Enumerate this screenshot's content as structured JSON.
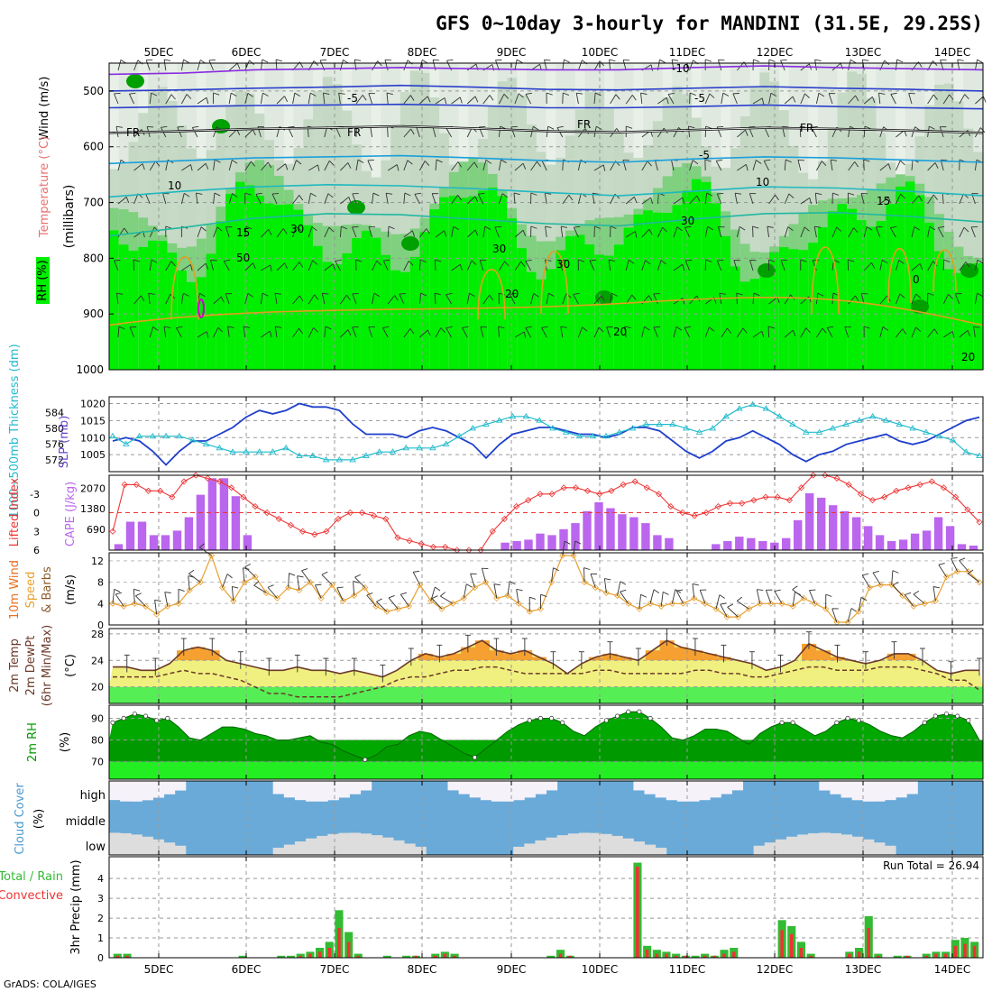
{
  "title": "GFS 0~10day 3-hourly for MANDINI (31.5E, 29.25S)",
  "footer": "GrADS: COLA/IGES",
  "colors": {
    "rh_green": "#00ee00",
    "rh_light": "#e8f0e8",
    "rh_mid": "#b8d0b8",
    "rh_dark": "#00a000",
    "slp": "#1f3fcc",
    "thickness": "#22bbcc",
    "lifted_index": "#ee3333",
    "cape": "#bb66ee",
    "wind_speed": "#e8a030",
    "temp_fill": "#f5a030",
    "dewpt_fill": "#f0f080",
    "rh2m": "#009900",
    "cloud_blue": "#6aaad8",
    "cloud_white": "#f6f2fa",
    "cloud_grey": "#dddddd",
    "precip_total": "#33bb33",
    "precip_conv": "#ee3333"
  },
  "chart_data": [
    {
      "type": "heatmap",
      "panel": "pressure-height cross section",
      "ylabel": "(millibars)",
      "left_labels": [
        "RH (%)",
        "Temperature (°C)",
        "Wind (m/s)"
      ],
      "yticks": [
        "500",
        "600",
        "700",
        "800",
        "900",
        "1000"
      ],
      "xticks": [
        "5DEC",
        "6DEC",
        "7DEC",
        "8DEC",
        "9DEC",
        "10DEC",
        "11DEC",
        "12DEC",
        "13DEC",
        "14DEC"
      ],
      "contour_labels": [
        "-10",
        "-5",
        "-5",
        "-5",
        "FR",
        "FR",
        "FR",
        "FR",
        "10",
        "10",
        "15",
        "15",
        "20",
        "20",
        "20",
        "30",
        "30",
        "30",
        "30",
        "50",
        "0"
      ],
      "isotherms": [
        {
          "label": "-10",
          "pressure": [
            470,
            468,
            462,
            460,
            458,
            460,
            462,
            462,
            458,
            455,
            458,
            460,
            462
          ]
        },
        {
          "label": "-5",
          "pressure": [
            500,
            498,
            495,
            493,
            490,
            493,
            497,
            498,
            495,
            492,
            495,
            497,
            500
          ]
        },
        {
          "label": "-5b",
          "pressure": [
            530,
            528,
            526,
            525,
            524,
            526,
            530,
            530,
            528,
            525,
            528,
            530,
            532
          ]
        },
        {
          "label": "FR",
          "pressure": [
            575,
            572,
            568,
            566,
            563,
            567,
            572,
            574,
            570,
            566,
            568,
            571,
            575
          ]
        },
        {
          "label": "5",
          "pressure": [
            630,
            625,
            620,
            618,
            616,
            620,
            625,
            628,
            622,
            618,
            620,
            624,
            628
          ]
        },
        {
          "label": "10",
          "pressure": [
            690,
            680,
            672,
            668,
            670,
            675,
            682,
            688,
            680,
            672,
            674,
            680,
            688
          ]
        },
        {
          "label": "15",
          "pressure": [
            760,
            745,
            728,
            720,
            722,
            730,
            738,
            742,
            730,
            720,
            718,
            725,
            735
          ]
        }
      ]
    },
    {
      "type": "line",
      "panel": "SLP and 1000-500mb thickness",
      "ylabel_left": "1000~500mb Thickness (dm)",
      "ylabel_right": "SLP (mb)",
      "yticks_left": [
        "584",
        "580",
        "576",
        "572"
      ],
      "yticks_right": [
        "1020",
        "1015",
        "1010",
        "1005"
      ],
      "series": [
        {
          "name": "SLP (mb)",
          "values": [
            1009,
            1010,
            1009,
            1006,
            1002,
            1006,
            1009,
            1009,
            1011,
            1013,
            1016,
            1018,
            1017,
            1018,
            1020,
            1019,
            1019,
            1018,
            1014,
            1011,
            1011,
            1011,
            1010,
            1012,
            1013,
            1012,
            1010,
            1008,
            1004,
            1008,
            1011,
            1012,
            1013,
            1013,
            1012,
            1011,
            1011,
            1010,
            1011,
            1013,
            1013,
            1012,
            1009,
            1006,
            1004,
            1006,
            1009,
            1010,
            1012,
            1010,
            1008,
            1005,
            1003,
            1005,
            1006,
            1008,
            1009,
            1010,
            1011,
            1009,
            1008,
            1009,
            1011,
            1013,
            1015,
            1016
          ]
        },
        {
          "name": "1000-500mb Thickness (dm)",
          "values": [
            578,
            576,
            578,
            578,
            578,
            578,
            577,
            576,
            575,
            574,
            574,
            574,
            574,
            575,
            573,
            573,
            572,
            572,
            572,
            573,
            574,
            574,
            575,
            575,
            575,
            576,
            578,
            580,
            581,
            582,
            583,
            583,
            582,
            580,
            579,
            578,
            578,
            578,
            579,
            580,
            581,
            581,
            581,
            580,
            579,
            580,
            583,
            585,
            586,
            585,
            583,
            581,
            579,
            579,
            580,
            581,
            582,
            583,
            582,
            581,
            580,
            579,
            578,
            577,
            574,
            573
          ]
        }
      ]
    },
    {
      "type": "bar",
      "panel": "CAPE and Lifted Index",
      "ylabel_left": "Lifted Index",
      "ylabel_right": "CAPE (J/kg)",
      "yticks_li": [
        "-3",
        "0",
        "3",
        "6"
      ],
      "yticks_cape": [
        "2070",
        "1380",
        "690"
      ],
      "series": [
        {
          "name": "CAPE (J/kg)",
          "values": [
            200,
            950,
            950,
            500,
            500,
            650,
            1100,
            1850,
            2400,
            2400,
            1800,
            500,
            0,
            0,
            0,
            0,
            0,
            0,
            0,
            0,
            0,
            0,
            0,
            0,
            0,
            0,
            0,
            0,
            0,
            0,
            0,
            0,
            0,
            250,
            300,
            350,
            550,
            500,
            700,
            900,
            1300,
            1600,
            1400,
            1200,
            1100,
            900,
            500,
            400,
            0,
            0,
            0,
            200,
            300,
            450,
            400,
            300,
            250,
            400,
            1000,
            1900,
            1750,
            1500,
            1300,
            1100,
            800,
            500,
            300,
            350,
            550,
            650,
            1100,
            800,
            200,
            150
          ]
        },
        {
          "name": "Lifted Index",
          "values": [
            3,
            -4.5,
            -4.5,
            -3.5,
            -3.5,
            -2.5,
            -5,
            -6,
            -5.5,
            -5,
            -4,
            -2.5,
            -1,
            0,
            1,
            2,
            3,
            3.5,
            3,
            1,
            0,
            0,
            0.5,
            1,
            4,
            4.5,
            5,
            5.5,
            5.5,
            6,
            6,
            6,
            3,
            1,
            -1,
            -2,
            -3,
            -3,
            -4,
            -4,
            -3.5,
            -3,
            -3.5,
            -4.5,
            -5,
            -4,
            -3,
            -1,
            0,
            0.5,
            0,
            -1,
            -1.5,
            -1.5,
            -2,
            -2.5,
            -2.5,
            -2,
            -4,
            -6,
            -6,
            -5.5,
            -4.5,
            -3,
            -2,
            -2.5,
            -3.5,
            -4,
            -4.5,
            -5,
            -4,
            -2.5,
            -0.5,
            1.5
          ]
        }
      ]
    },
    {
      "type": "line",
      "panel": "10m Wind",
      "ylabel": "10m Wind Speed (m/s) & Barbs",
      "yticks": [
        "0",
        "4",
        "8",
        "12"
      ],
      "series": [
        {
          "name": "10m Wind Speed",
          "values": [
            4,
            3.5,
            4,
            3.5,
            2,
            3.5,
            4,
            6.5,
            8,
            13,
            7,
            4.5,
            8,
            9,
            6,
            5,
            7,
            6.5,
            8,
            5,
            7.5,
            4.5,
            5.5,
            7,
            3.5,
            2.5,
            3,
            3.5,
            7.5,
            4.5,
            3,
            4,
            5,
            7,
            8,
            5,
            5.5,
            4,
            2.5,
            3,
            8,
            13,
            13,
            8,
            7,
            6,
            5.5,
            4,
            3,
            4,
            3.5,
            4,
            4,
            5,
            4,
            3,
            1.5,
            1.5,
            3,
            4,
            4,
            4,
            3.5,
            5,
            4,
            3,
            0.5,
            0.5,
            2.5,
            7,
            7.5,
            7.5,
            5.5,
            3.5,
            4,
            4.5,
            9,
            10,
            10,
            8
          ]
        }
      ]
    },
    {
      "type": "area",
      "panel": "2m Temperature",
      "ylabel": "2m Temp / 2m DewPt / (6hr Min/Max) (°C)",
      "yticks": [
        "20",
        "24",
        "28"
      ],
      "series": [
        {
          "name": "2m Temp",
          "values": [
            23,
            23,
            22.5,
            22.5,
            23.5,
            25.5,
            26,
            25.5,
            24,
            23.5,
            23,
            22.5,
            22.5,
            23,
            22.5,
            22.5,
            22,
            22.5,
            22,
            21.5,
            22.5,
            24,
            25,
            24.5,
            25,
            26,
            27,
            25.5,
            25,
            25.5,
            24.5,
            23.5,
            22,
            23.5,
            24.5,
            25,
            24.5,
            24,
            25.5,
            27,
            26,
            25.5,
            25,
            24.5,
            24,
            23.5,
            22.5,
            23,
            24,
            26.5,
            25.5,
            24.5,
            24,
            23.5,
            24,
            25,
            25,
            24,
            22.5,
            22,
            22.5,
            22.5
          ]
        },
        {
          "name": "2m DewPt",
          "values": [
            21.5,
            21.5,
            21.5,
            21.5,
            22,
            22.5,
            22,
            22,
            21.5,
            21,
            20,
            19,
            19,
            18.5,
            18.5,
            18.5,
            18.5,
            19,
            19.5,
            20,
            21,
            21.5,
            21.5,
            22,
            22.5,
            22.5,
            23,
            23,
            22.5,
            22,
            22,
            22,
            22,
            22,
            22.5,
            22.5,
            22,
            22,
            22,
            22,
            22,
            22.5,
            22.5,
            22,
            22,
            21.5,
            21.5,
            22,
            22.5,
            23,
            23,
            22.5,
            22.5,
            22.5,
            23,
            23,
            23,
            22.5,
            22,
            21,
            21,
            19.5
          ]
        }
      ]
    },
    {
      "type": "area",
      "panel": "2m RH",
      "ylabel": "2m RH (%)",
      "yticks": [
        "70",
        "80",
        "90"
      ],
      "series": [
        {
          "name": "2m RH",
          "values": [
            88,
            90,
            92,
            91,
            89,
            90,
            86,
            81,
            80,
            83,
            86,
            86,
            85,
            83,
            82,
            80,
            80,
            81,
            82,
            79,
            78,
            75,
            73,
            71,
            73,
            77,
            78,
            82,
            84,
            83,
            80,
            77,
            74,
            72,
            76,
            80,
            84,
            87,
            89,
            90,
            90,
            88,
            84,
            82,
            86,
            89,
            91,
            93,
            93,
            90,
            86,
            81,
            80,
            82,
            85,
            85,
            84,
            81,
            78,
            83,
            86,
            88,
            88,
            85,
            82,
            84,
            88,
            90,
            89,
            87,
            84,
            82,
            81,
            84,
            88,
            91,
            92,
            91,
            89,
            80
          ]
        }
      ]
    },
    {
      "type": "heatmap",
      "panel": "Cloud Cover",
      "ylabel": "Cloud Cover (%)",
      "yticks": [
        "high",
        "middle",
        "low"
      ]
    },
    {
      "type": "bar",
      "panel": "3hr Precip",
      "ylabel": "3hr Precip (mm)",
      "left_labels": [
        "Total / Rain",
        "Convective"
      ],
      "annotation": "Run Total = 26.94",
      "yticks": [
        "0",
        "1",
        "2",
        "3",
        "4"
      ],
      "series": [
        {
          "name": "Total / Rain",
          "values": [
            0.2,
            0.2,
            0,
            0,
            0,
            0,
            0,
            0,
            0,
            0,
            0,
            0,
            0,
            0.1,
            0,
            0,
            0,
            0.1,
            0.1,
            0.2,
            0.3,
            0.5,
            0.8,
            2.4,
            1.3,
            0.2,
            0,
            0,
            0.1,
            0,
            0.1,
            0.1,
            0,
            0.2,
            0.3,
            0.2,
            0,
            0,
            0,
            0,
            0,
            0,
            0,
            0,
            0,
            0.1,
            0.4,
            0.1,
            0,
            0,
            0,
            0,
            0,
            0,
            4.8,
            0.6,
            0.4,
            0.3,
            0.2,
            0.1,
            0.1,
            0.2,
            0.1,
            0.4,
            0.5,
            0,
            0,
            0,
            0,
            1.9,
            1.6,
            0.8,
            0.2,
            0,
            0,
            0,
            0.3,
            0.5,
            2.1,
            0.2,
            0,
            0.1,
            0.1,
            0,
            0.2,
            0.3,
            0.3,
            0.9,
            1.0,
            0.8
          ]
        },
        {
          "name": "Convective",
          "values": [
            0.1,
            0.1,
            0,
            0,
            0,
            0,
            0,
            0,
            0,
            0,
            0,
            0,
            0,
            0,
            0,
            0,
            0,
            0,
            0,
            0.1,
            0.2,
            0.3,
            0.5,
            1.5,
            0.8,
            0.1,
            0,
            0,
            0,
            0,
            0,
            0.1,
            0,
            0.1,
            0.2,
            0.1,
            0,
            0,
            0,
            0,
            0,
            0,
            0,
            0,
            0,
            0,
            0.2,
            0.1,
            0,
            0,
            0,
            0,
            0,
            0,
            4.6,
            0.4,
            0.2,
            0.2,
            0.1,
            0.1,
            0,
            0.1,
            0.1,
            0.2,
            0.3,
            0,
            0,
            0,
            0,
            1.4,
            1.2,
            0.5,
            0.1,
            0,
            0,
            0,
            0.2,
            0.3,
            1.5,
            0.1,
            0,
            0,
            0.1,
            0,
            0.1,
            0.2,
            0.2,
            0.6,
            0.7,
            0.6
          ]
        }
      ]
    }
  ]
}
